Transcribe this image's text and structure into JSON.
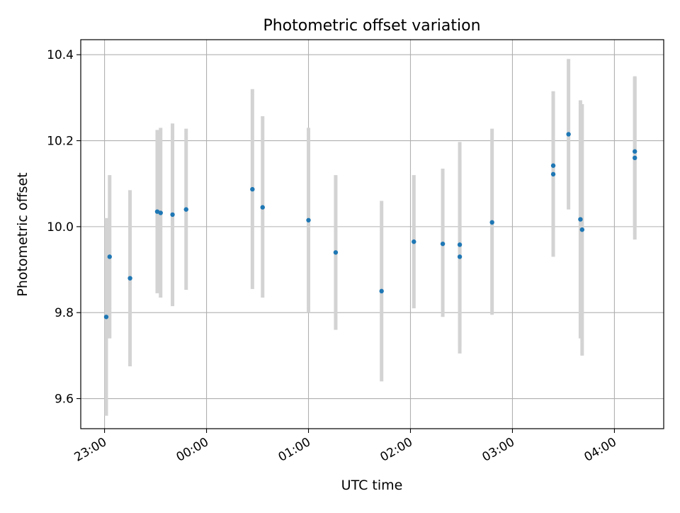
{
  "chart_data": {
    "type": "scatter",
    "title": "Photometric offset variation",
    "xlabel": "UTC time",
    "ylabel": "Photometric offset",
    "x_axis": {
      "kind": "time",
      "range": [
        "22:46",
        "04:29"
      ],
      "ticks": [
        "23:00",
        "00:00",
        "01:00",
        "02:00",
        "03:00",
        "04:00"
      ]
    },
    "y_axis": {
      "range": [
        9.53,
        10.435
      ],
      "ticks": [
        "9.6",
        "9.8",
        "10.0",
        "10.2",
        "10.4"
      ]
    },
    "grid": true,
    "colors": {
      "point": "#1f77b4",
      "errorbar": "#d3d3d3",
      "grid": "#b0b0b0"
    },
    "points": [
      {
        "x": "23:01",
        "y": 9.79,
        "y_low": 9.56,
        "y_high": 10.02
      },
      {
        "x": "23:03",
        "y": 9.93,
        "y_low": 9.74,
        "y_high": 10.12
      },
      {
        "x": "23:15",
        "y": 9.88,
        "y_low": 9.675,
        "y_high": 10.085
      },
      {
        "x": "23:31",
        "y": 10.035,
        "y_low": 9.845,
        "y_high": 10.225
      },
      {
        "x": "23:33",
        "y": 10.032,
        "y_low": 9.835,
        "y_high": 10.23
      },
      {
        "x": "23:40",
        "y": 10.028,
        "y_low": 9.815,
        "y_high": 10.24
      },
      {
        "x": "23:48",
        "y": 10.04,
        "y_low": 9.853,
        "y_high": 10.228
      },
      {
        "x": "00:27",
        "y": 10.087,
        "y_low": 9.855,
        "y_high": 10.32
      },
      {
        "x": "00:33",
        "y": 10.045,
        "y_low": 9.835,
        "y_high": 10.257
      },
      {
        "x": "01:00",
        "y": 10.015,
        "y_low": 9.8,
        "y_high": 10.23
      },
      {
        "x": "01:16",
        "y": 9.94,
        "y_low": 9.76,
        "y_high": 10.12
      },
      {
        "x": "01:43",
        "y": 9.85,
        "y_low": 9.64,
        "y_high": 10.06
      },
      {
        "x": "02:02",
        "y": 9.965,
        "y_low": 9.81,
        "y_high": 10.12
      },
      {
        "x": "02:19",
        "y": 9.96,
        "y_low": 9.79,
        "y_high": 10.135
      },
      {
        "x": "02:29",
        "y": 9.93,
        "y_low": 9.705,
        "y_high": 10.155
      },
      {
        "x": "02:29",
        "y": 9.958,
        "y_low": 9.72,
        "y_high": 10.197
      },
      {
        "x": "02:48",
        "y": 10.01,
        "y_low": 9.795,
        "y_high": 10.228
      },
      {
        "x": "03:24",
        "y": 10.142,
        "y_low": 9.985,
        "y_high": 10.298
      },
      {
        "x": "03:24",
        "y": 10.122,
        "y_low": 9.93,
        "y_high": 10.315
      },
      {
        "x": "03:33",
        "y": 10.215,
        "y_low": 10.04,
        "y_high": 10.39
      },
      {
        "x": "03:40",
        "y": 10.017,
        "y_low": 9.74,
        "y_high": 10.294
      },
      {
        "x": "03:41",
        "y": 9.993,
        "y_low": 9.7,
        "y_high": 10.285
      },
      {
        "x": "04:12",
        "y": 10.175,
        "y_low": 10.0,
        "y_high": 10.35
      },
      {
        "x": "04:12",
        "y": 10.16,
        "y_low": 9.97,
        "y_high": 10.347
      }
    ]
  }
}
